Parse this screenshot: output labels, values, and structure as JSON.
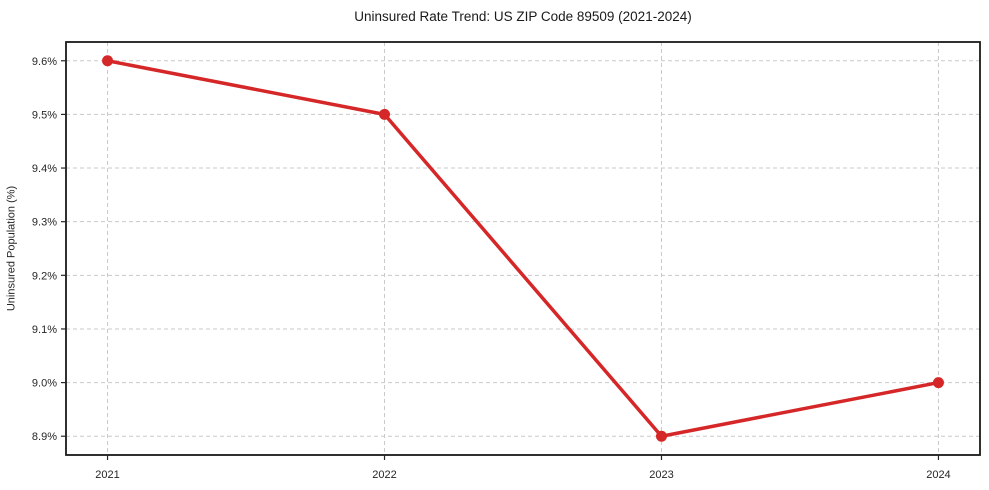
{
  "chart_data": {
    "type": "line",
    "title": "Uninsured Rate Trend: US ZIP Code 89509 (2021-2024)",
    "xlabel": "",
    "ylabel": "Uninsured Population (%)",
    "categories": [
      "2021",
      "2022",
      "2023",
      "2024"
    ],
    "x": [
      2021,
      2022,
      2023,
      2024
    ],
    "series": [
      {
        "name": "uninsured-rate",
        "values": [
          9.6,
          9.5,
          8.9,
          9.0
        ]
      }
    ],
    "y_ticks": [
      8.9,
      9.0,
      9.1,
      9.2,
      9.3,
      9.4,
      9.5,
      9.6
    ],
    "y_tick_labels": [
      "8.9%",
      "9.0%",
      "9.1%",
      "9.2%",
      "9.3%",
      "9.4%",
      "9.5%",
      "9.6%"
    ],
    "xlim": [
      2020.85,
      2024.15
    ],
    "ylim": [
      8.865,
      9.635
    ],
    "grid": true,
    "grid_style": "dashed",
    "legend": "none",
    "colors": {
      "line": "#d62728",
      "marker": "#d62728",
      "grid": "#c9c9c9",
      "spine": "#1a1a1a",
      "tick": "#262626",
      "background": "#ffffff"
    },
    "marker": "circle",
    "marker_radius": 5.5,
    "line_width": 3.5
  },
  "layout_labels": {
    "figure_name": "uninsured-rate-trend-chart"
  }
}
